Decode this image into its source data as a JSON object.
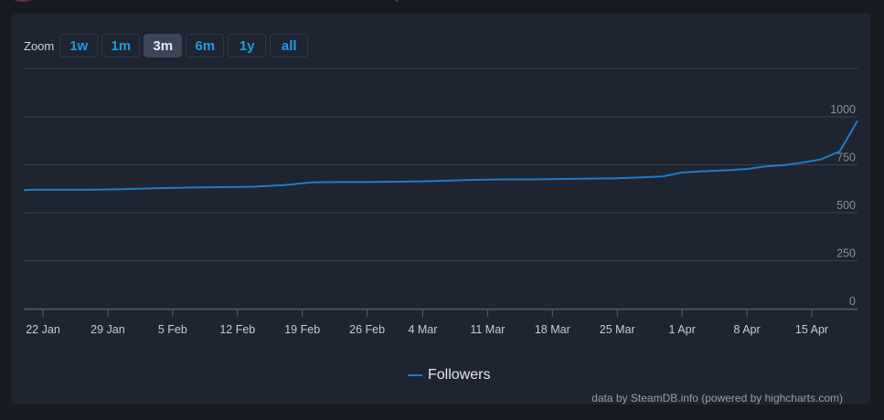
{
  "zoom": {
    "label": "Zoom",
    "buttons": [
      {
        "label": "1w",
        "active": false
      },
      {
        "label": "1m",
        "active": false
      },
      {
        "label": "3m",
        "active": true
      },
      {
        "label": "6m",
        "active": false
      },
      {
        "label": "1y",
        "active": false
      },
      {
        "label": "all",
        "active": false
      }
    ]
  },
  "credits": "data by SteamDB.info (powered by highcharts.com)",
  "colors": {
    "line": "#1c7cc9",
    "grid": "#3a4150",
    "panel": "#1e2430",
    "zoom_text": "#1f9be6"
  },
  "chart_data": {
    "type": "line",
    "series": [
      {
        "name": "Followers",
        "x": [
          "18 Jan",
          "21 Jan",
          "24 Jan",
          "27 Jan",
          "30 Jan",
          "2 Feb",
          "5 Feb",
          "8 Feb",
          "11 Feb",
          "14 Feb",
          "17 Feb",
          "20 Feb",
          "23 Feb",
          "26 Feb",
          "1 Mar",
          "4 Mar",
          "7 Mar",
          "10 Mar",
          "13 Mar",
          "16 Mar",
          "19 Mar",
          "22 Mar",
          "25 Mar",
          "28 Mar",
          "30 Mar",
          "1 Apr",
          "4 Apr",
          "6 Apr",
          "8 Apr",
          "10 Apr",
          "12 Apr",
          "14 Apr",
          "16 Apr",
          "18 Apr",
          "19 Apr",
          "20 Apr"
        ],
        "values": [
          618,
          620,
          620,
          620,
          622,
          626,
          630,
          632,
          634,
          636,
          644,
          658,
          660,
          660,
          662,
          664,
          668,
          672,
          674,
          674,
          676,
          678,
          680,
          685,
          690,
          710,
          718,
          722,
          728,
          742,
          748,
          762,
          778,
          820,
          900,
          980
        ]
      }
    ],
    "x_ticks": [
      "22 Jan",
      "29 Jan",
      "5 Feb",
      "12 Feb",
      "19 Feb",
      "26 Feb",
      "4 Mar",
      "11 Mar",
      "18 Mar",
      "25 Mar",
      "1 Apr",
      "8 Apr",
      "15 Apr"
    ],
    "y_ticks": [
      "0",
      "250",
      "500",
      "750",
      "1000"
    ],
    "ylim": [
      0,
      1250
    ],
    "grid": true,
    "legend": "bottom-center"
  }
}
